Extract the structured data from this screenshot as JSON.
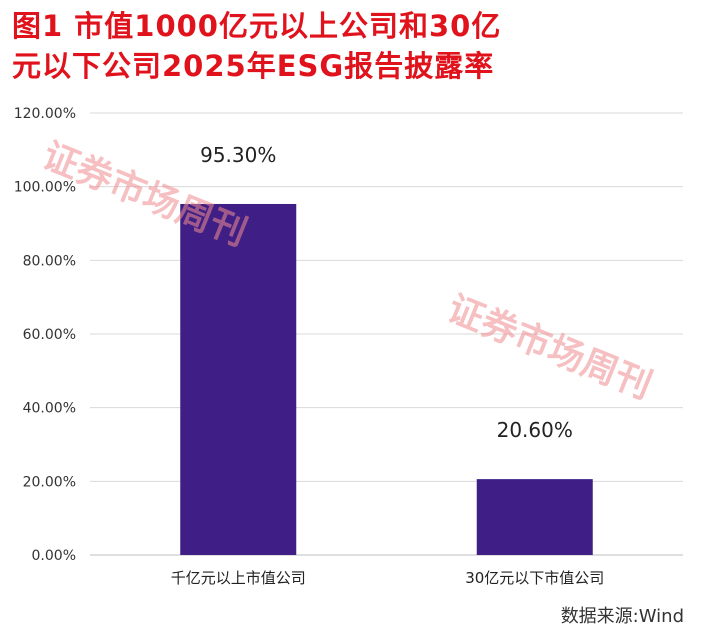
{
  "title_line1": "图1  市值1000亿元以上公司和30亿",
  "title_line2": "元以下公司2025年ESG报告披露率",
  "watermark": "证券市场周刊",
  "source": "数据来源:Wind",
  "colors": {
    "title": "#e0121c",
    "bar": "#3f1f86",
    "grid": "#d9d9d9",
    "watermark": "#f08c90"
  },
  "chart_data": {
    "type": "bar",
    "categories": [
      "千亿元以上市值公司",
      "30亿元以下市值公司"
    ],
    "values": [
      95.3,
      20.6
    ],
    "value_labels": [
      "95.30%",
      "20.60%"
    ],
    "ylim": [
      0,
      120
    ],
    "yticks": [
      0,
      20,
      40,
      60,
      80,
      100,
      120
    ],
    "ytick_labels": [
      "0.00%",
      "20.00%",
      "40.00%",
      "60.00%",
      "80.00%",
      "100.00%",
      "120.00%"
    ],
    "grid": true,
    "legend": false
  }
}
